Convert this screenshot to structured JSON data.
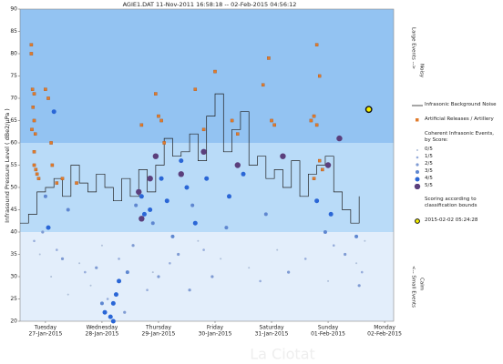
{
  "chart_data": {
    "type": "scatter",
    "title": "AGIE1.DAT   11-Nov-2011 16:58:18  --  02-Feb-2015 04:56:12",
    "y_label": "Infrasound Pressure Level  ( dBe2/μPa )",
    "right_top_label": "Large Events -->",
    "right_top_sub": "Noisy",
    "right_bottom_label": "<-- Small Events",
    "right_bottom_sub": "Calm",
    "watermark": "La Ciotat",
    "xlim": [
      0.05,
      6.66
    ],
    "ylim": [
      20,
      90
    ],
    "yticks": [
      20,
      25,
      30,
      35,
      40,
      45,
      50,
      55,
      60,
      65,
      70,
      75,
      80,
      85,
      90
    ],
    "xticks": [
      {
        "value": 0.5,
        "label": "Tuesday",
        "sublabel": "27-Jan-2015"
      },
      {
        "value": 1.5,
        "label": "Wednesday",
        "sublabel": "28-Jan-2015"
      },
      {
        "value": 2.5,
        "label": "Thursday",
        "sublabel": "29-Jan-2015"
      },
      {
        "value": 3.5,
        "label": "Friday",
        "sublabel": "30-Jan-2015"
      },
      {
        "value": 4.5,
        "label": "Saturday",
        "sublabel": "31-Jan-2015"
      },
      {
        "value": 5.5,
        "label": "Sunday",
        "sublabel": "01-Feb-2015"
      },
      {
        "value": 6.5,
        "label": "Monday",
        "sublabel": "02-Feb-2015"
      }
    ],
    "bands": [
      {
        "from": 20,
        "to": 40,
        "color": "#e3eefb"
      },
      {
        "from": 40,
        "to": 60,
        "color": "#b9dbf8"
      },
      {
        "from": 60,
        "to": 90,
        "color": "#93c3f2"
      }
    ],
    "noise": {
      "name": "Infrasonic Background Noise",
      "color": "#222222",
      "x": [
        0.05,
        0.2,
        0.35,
        0.5,
        0.65,
        0.8,
        0.95,
        1.1,
        1.25,
        1.4,
        1.55,
        1.7,
        1.85,
        2.0,
        2.15,
        2.3,
        2.45,
        2.6,
        2.75,
        2.9,
        3.05,
        3.2,
        3.35,
        3.5,
        3.65,
        3.8,
        3.95,
        4.1,
        4.25,
        4.4,
        4.55,
        4.7,
        4.85,
        5.0,
        5.15,
        5.3,
        5.45,
        5.6,
        5.75,
        5.9,
        6.05
      ],
      "values": [
        42,
        44,
        49,
        50,
        52,
        48,
        55,
        51,
        49,
        53,
        50,
        47,
        52,
        48,
        54,
        49,
        55,
        61,
        57,
        58,
        62,
        56,
        66,
        71,
        58,
        63,
        67,
        55,
        57,
        52,
        54,
        50,
        56,
        48,
        53,
        55,
        57,
        49,
        45,
        42,
        48
      ]
    },
    "artillery": {
      "name": "Artificial Releases / Artillery",
      "color": "#e07b2c",
      "x": [
        0.25,
        0.25,
        0.27,
        0.3,
        0.28,
        0.3,
        0.26,
        0.32,
        0.3,
        0.3,
        0.33,
        0.35,
        0.38,
        0.5,
        0.55,
        0.6,
        0.62,
        0.7,
        0.8,
        1.05,
        2.2,
        2.45,
        2.5,
        2.55,
        2.6,
        3.15,
        3.3,
        3.5,
        3.8,
        3.9,
        4.35,
        4.45,
        4.5,
        4.55,
        5.2,
        5.25,
        5.3,
        5.35,
        5.3,
        5.35,
        5.4,
        5.25
      ],
      "values": [
        82,
        80,
        72,
        71,
        68,
        65,
        63,
        62,
        58,
        55,
        54,
        53,
        52,
        72,
        70,
        60,
        55,
        51,
        52,
        51,
        64,
        71,
        66,
        65,
        60,
        72,
        63,
        76,
        65,
        62,
        73,
        79,
        65,
        64,
        65,
        66,
        82,
        75,
        64,
        56,
        54,
        52
      ]
    },
    "events_title": "Coherent Infrasonic Events, by Score:",
    "series": [
      {
        "name": "0/5",
        "color": "#aebfd8",
        "size": 1,
        "x": [
          0.4,
          0.6,
          1.1,
          1.3,
          1.5,
          2.4,
          3.2,
          3.6,
          4.6,
          5.5,
          6.0,
          6.15,
          0.9,
          4.1
        ],
        "values": [
          35,
          30,
          33,
          28,
          37,
          31,
          38,
          34,
          36,
          29,
          33,
          38,
          26,
          32
        ]
      },
      {
        "name": "1/5",
        "color": "#97addb",
        "size": 1.3,
        "x": [
          0.3,
          0.7,
          1.2,
          1.8,
          2.3,
          2.7,
          3.3,
          4.3,
          5.1,
          5.6,
          6.1,
          1.6
        ],
        "values": [
          38,
          36,
          31,
          34,
          27,
          33,
          36,
          29,
          34,
          37,
          31,
          25
        ]
      },
      {
        "name": "2/5",
        "color": "#7f9bd3",
        "size": 1.6,
        "x": [
          0.45,
          0.8,
          1.4,
          2.05,
          2.5,
          2.85,
          3.45,
          4.8,
          5.8,
          6.05,
          1.9,
          3.05
        ],
        "values": [
          40,
          34,
          32,
          37,
          30,
          35,
          30,
          31,
          35,
          28,
          22,
          27
        ]
      },
      {
        "name": "3/5",
        "color": "#5f87d0",
        "size": 2,
        "x": [
          0.5,
          0.9,
          1.5,
          2.1,
          2.4,
          2.75,
          3.1,
          3.7,
          4.4,
          5.45,
          6.0,
          1.95
        ],
        "values": [
          48,
          45,
          24,
          46,
          42,
          39,
          46,
          41,
          44,
          40,
          39,
          31
        ]
      },
      {
        "name": "4/5",
        "color": "#2a66d6",
        "size": 2.5,
        "x": [
          0.65,
          0.55,
          1.55,
          1.65,
          1.7,
          1.75,
          1.7,
          2.2,
          2.35,
          2.55,
          2.65,
          2.9,
          3.0,
          3.15,
          3.35,
          3.75,
          4.0,
          5.3,
          5.55,
          1.8,
          2.25
        ],
        "values": [
          67,
          41,
          22,
          21,
          24,
          26,
          20,
          48,
          45,
          52,
          47,
          56,
          50,
          42,
          52,
          48,
          53,
          47,
          44,
          29,
          44
        ]
      },
      {
        "name": "5/5",
        "color": "#5b3f7c",
        "size": 3.2,
        "x": [
          2.2,
          2.35,
          2.45,
          2.9,
          3.3,
          3.9,
          4.7,
          5.7,
          5.5,
          2.15
        ],
        "values": [
          43,
          52,
          57,
          53,
          58,
          55,
          57,
          61,
          55,
          49
        ]
      }
    ],
    "scoring_note": "Scoring according to classification bounds",
    "highlight": {
      "name": "2015-02-02 05:24:28",
      "x": 6.22,
      "value": 67.5,
      "color": "#f4f000"
    }
  }
}
